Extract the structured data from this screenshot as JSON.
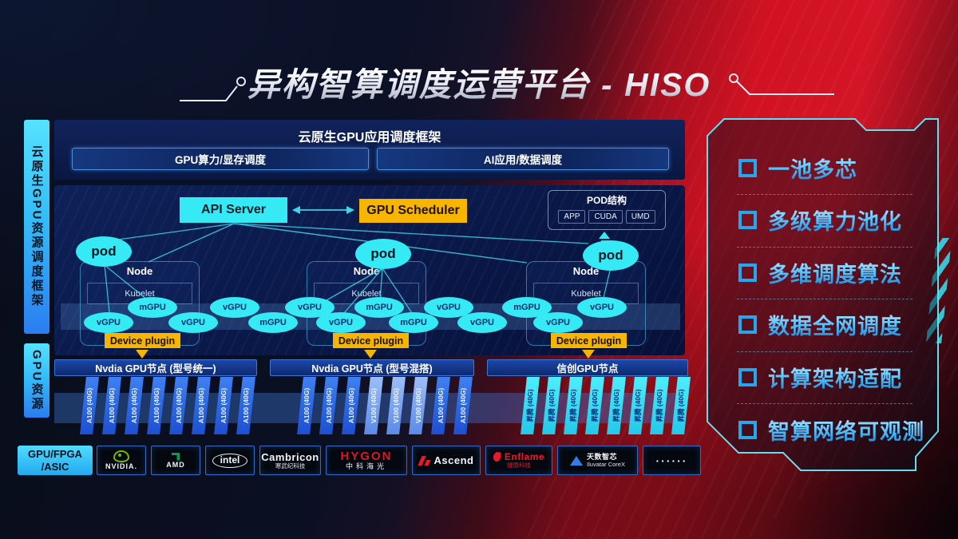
{
  "title": {
    "text": "异构智算调度运营平台 - HISO"
  },
  "sidebar": {
    "framework": "云原生GPU资源调度框架",
    "resource": "GPU资源",
    "hardware_line1": "GPU/FPGA",
    "hardware_line2": "/ASIC"
  },
  "app_framework": {
    "title": "云原生GPU应用调度框架",
    "modules": [
      {
        "label": "GPU算力/显存调度"
      },
      {
        "label": "AI应用/数据调度"
      }
    ]
  },
  "control": {
    "api_server": "API Server",
    "gpu_scheduler": "GPU Scheduler",
    "pod_label": "pod",
    "pod_panel": {
      "title": "POD结构",
      "layers": [
        "APP",
        "CUDA",
        "UMD"
      ]
    }
  },
  "nodes": [
    {
      "title": "Node",
      "kubelet": "Kubelet",
      "device_plugin": "Device plugin"
    },
    {
      "title": "Node",
      "kubelet": "Kubelet",
      "device_plugin": "Device plugin"
    },
    {
      "title": "Node",
      "kubelet": "Kubelet",
      "device_plugin": "Device plugin"
    }
  ],
  "gpu_units": {
    "top_row": [
      "mGPU",
      "vGPU",
      "vGPU",
      "mGPU",
      "vGPU",
      "mGPU",
      "vGPU"
    ],
    "bottom_row": [
      "vGPU",
      "vGPU",
      "mGPU",
      "vGPU",
      "mGPU",
      "vGPU",
      "vGPU"
    ]
  },
  "gpu_groups": [
    {
      "title": "Nvdia GPU节点 (型号统一)",
      "style": "blue",
      "cards": [
        "A100 (40G)",
        "A100 (40G)",
        "A100 (40G)",
        "A100 (40G)",
        "A100 (40G)",
        "A100 (40G)",
        "A100 (40G)",
        "A100 (40G)"
      ]
    },
    {
      "title": "Nvdia GPU节点 (型号混搭)",
      "style": "blue",
      "cards": [
        "A100 (40G)",
        "A100 (40G)",
        "A100 (40G)",
        "V100 (40G)",
        "V100 (40G)",
        "V100 (40G)",
        "A100 (40G)",
        "A100 (40G)"
      ]
    },
    {
      "title": "信创GPU节点",
      "style": "cyan",
      "cards": [
        "昇腾 (40G)",
        "昇腾 (40G)",
        "昇腾 (40G)",
        "昇腾 (40G)",
        "昇腾 (40G)",
        "昇腾 (40G)",
        "昇腾 (40G)",
        "昇腾 (40G)"
      ]
    }
  ],
  "vendors": [
    {
      "id": "nvidia",
      "text": "NVIDIA."
    },
    {
      "id": "amd",
      "text": "AMD"
    },
    {
      "id": "intel",
      "text": "intel"
    },
    {
      "id": "cambricon",
      "text": "Cambricon",
      "sub": "寒武纪科技"
    },
    {
      "id": "hygon",
      "text": "HYGON",
      "sub": "中科海光"
    },
    {
      "id": "ascend",
      "text": "Ascend"
    },
    {
      "id": "enflame",
      "text": "Enflame",
      "sub": "燧原科技"
    },
    {
      "id": "iluvatar",
      "text": "天数智芯",
      "sub": "Iluvatar CoreX"
    },
    {
      "id": "more",
      "text": "······"
    }
  ],
  "features": [
    {
      "label": "一池多芯"
    },
    {
      "label": "多级算力池化"
    },
    {
      "label": "多维调度算法"
    },
    {
      "label": "数据全网调度"
    },
    {
      "label": "计算架构适配"
    },
    {
      "label": "智算网络可观测"
    }
  ],
  "colors": {
    "cyan": "#35e9f5",
    "orange": "#f7b500",
    "feature_blue": "#23a7ee",
    "accent_red": "#d11222"
  }
}
